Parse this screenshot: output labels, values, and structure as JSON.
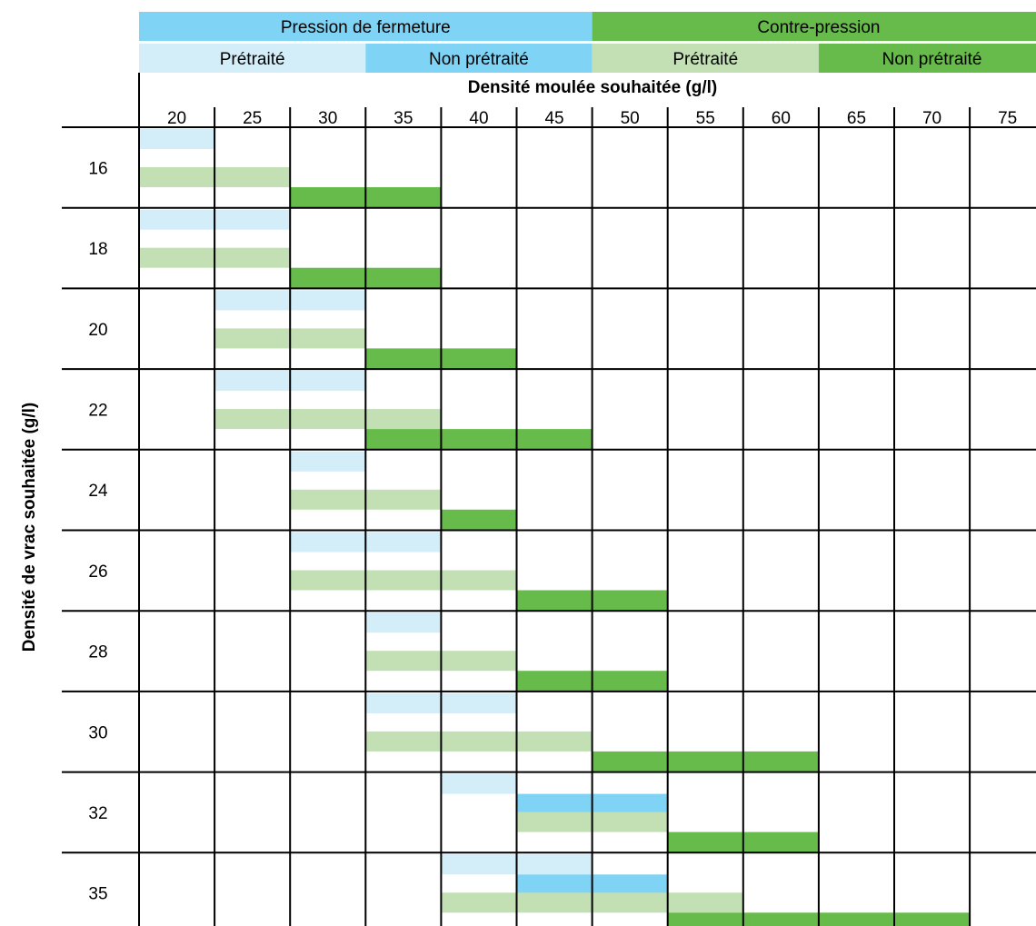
{
  "chart_data": {
    "type": "table",
    "title": "",
    "xlabel": "Densité moulée souhaitée (g/l)",
    "ylabel": "Densité de vrac souhaitée (g/l)",
    "header": {
      "groups": [
        {
          "label": "Pression de fermeture",
          "color": "#7fd4f5",
          "colspan": [
            20,
            45
          ]
        },
        {
          "label": "Contre-pression",
          "color": "#67bb4a",
          "colspan": [
            50,
            75
          ]
        }
      ],
      "subgroups": [
        {
          "label": "Prétraité",
          "color": "#d3edf9",
          "colspan": [
            20,
            30
          ]
        },
        {
          "label": "Non prétraité",
          "color": "#7fd4f5",
          "colspan": [
            35,
            45
          ]
        },
        {
          "label": "Prétraité",
          "color": "#c2e0b4",
          "colspan": [
            50,
            60
          ]
        },
        {
          "label": "Non prétraité",
          "color": "#67bb4a",
          "colspan": [
            65,
            75
          ]
        }
      ]
    },
    "categories": [
      "20",
      "25",
      "30",
      "35",
      "40",
      "45",
      "50",
      "55",
      "60",
      "65",
      "70",
      "75"
    ],
    "rows": [
      "16",
      "18",
      "20",
      "22",
      "24",
      "26",
      "28",
      "30",
      "32",
      "35"
    ],
    "series": [
      {
        "key": "closing_pretreated",
        "color": "#d3edf9",
        "ranges": [
          [
            20,
            20
          ],
          [
            20,
            25
          ],
          [
            25,
            30
          ],
          [
            25,
            30
          ],
          [
            30,
            30
          ],
          [
            30,
            35
          ],
          [
            35,
            35
          ],
          [
            35,
            40
          ],
          [
            40,
            40
          ],
          [
            40,
            45
          ]
        ]
      },
      {
        "key": "closing_untreated",
        "color": "#7fd4f5",
        "ranges": [
          null,
          null,
          null,
          null,
          null,
          null,
          null,
          null,
          [
            45,
            50
          ],
          [
            45,
            50
          ]
        ]
      },
      {
        "key": "counter_pretreated",
        "color": "#c2e0b4",
        "ranges": [
          [
            20,
            25
          ],
          [
            20,
            25
          ],
          [
            25,
            30
          ],
          [
            25,
            35
          ],
          [
            30,
            35
          ],
          [
            30,
            40
          ],
          [
            35,
            40
          ],
          [
            35,
            45
          ],
          [
            45,
            50
          ],
          [
            40,
            55
          ]
        ]
      },
      {
        "key": "counter_untreated",
        "color": "#67bb4a",
        "ranges": [
          [
            30,
            35
          ],
          [
            30,
            35
          ],
          [
            35,
            40
          ],
          [
            35,
            45
          ],
          [
            40,
            40
          ],
          [
            45,
            50
          ],
          [
            45,
            50
          ],
          [
            50,
            60
          ],
          [
            55,
            60
          ],
          [
            55,
            70
          ]
        ]
      }
    ]
  }
}
